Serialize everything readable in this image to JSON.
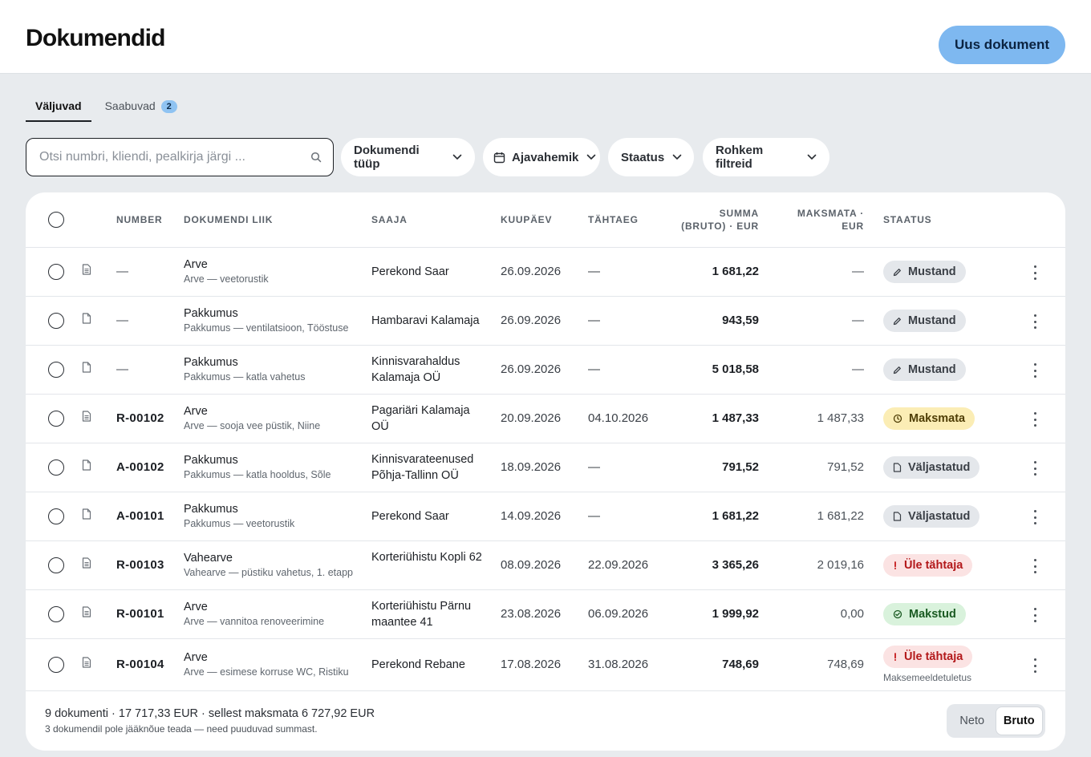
{
  "header": {
    "title": "Dokumendid",
    "new_button": "Uus dokument"
  },
  "tabs": [
    {
      "label": "Väljuvad",
      "active": true
    },
    {
      "label": "Saabuvad",
      "badge": "2",
      "active": false
    }
  ],
  "search": {
    "placeholder": "Otsi numbri, kliendi, pealkirja järgi ...",
    "value": ""
  },
  "filters": {
    "doc_type": "Dokumendi tüüp",
    "date_range": "Ajavahemik",
    "status": "Staatus",
    "more": "Rohkem filtreid"
  },
  "table": {
    "columns": {
      "number": "Number",
      "kind": "Dokumendi liik",
      "recipient": "Saaja",
      "date": "Kuupäev",
      "due": "Tähtaeg",
      "gross_1": "Summa",
      "gross_2": "(bruto) · EUR",
      "unpaid_1": "Maksmata ·",
      "unpaid_2": "EUR",
      "status": "Staatus"
    },
    "rows": [
      {
        "number": "—",
        "kind": "Arve",
        "subtitle": "Arve — veetorustik",
        "recipient": "Perekond Saar",
        "date": "26.09.2026",
        "due": "—",
        "amount": "1 681,22",
        "unpaid": "—",
        "status": "Mustand",
        "status_type": "draft",
        "icon": "invoice"
      },
      {
        "number": "—",
        "kind": "Pakkumus",
        "subtitle": "Pakkumus — ventilatsioon, Tööstuse",
        "recipient": "Hambaravi Kalamaja",
        "date": "26.09.2026",
        "due": "—",
        "amount": "943,59",
        "unpaid": "—",
        "status": "Mustand",
        "status_type": "draft",
        "icon": "offer"
      },
      {
        "number": "—",
        "kind": "Pakkumus",
        "subtitle": "Pakkumus — katla vahetus",
        "recipient": "Kinnisvarahaldus Kalamaja OÜ",
        "date": "26.09.2026",
        "due": "—",
        "amount": "5 018,58",
        "unpaid": "—",
        "status": "Mustand",
        "status_type": "draft",
        "icon": "offer"
      },
      {
        "number": "R-00102",
        "kind": "Arve",
        "subtitle": "Arve — sooja vee püstik, Niine",
        "recipient": "Pagariäri Kalamaja OÜ",
        "date": "20.09.2026",
        "due": "04.10.2026",
        "amount": "1 487,33",
        "unpaid": "1 487,33",
        "status": "Maksmata",
        "status_type": "unpaid",
        "icon": "invoice"
      },
      {
        "number": "A-00102",
        "kind": "Pakkumus",
        "subtitle": "Pakkumus — katla hooldus, Sõle",
        "recipient": "Kinnisvarateenused Põhja-Tallinn OÜ",
        "date": "18.09.2026",
        "due": "—",
        "amount": "791,52",
        "unpaid": "791,52",
        "status": "Väljastatud",
        "status_type": "issued",
        "icon": "offer"
      },
      {
        "number": "A-00101",
        "kind": "Pakkumus",
        "subtitle": "Pakkumus — veetorustik",
        "recipient": "Perekond Saar",
        "date": "14.09.2026",
        "due": "—",
        "amount": "1 681,22",
        "unpaid": "1 681,22",
        "status": "Väljastatud",
        "status_type": "issued",
        "icon": "offer"
      },
      {
        "number": "R-00103",
        "kind": "Vahearve",
        "subtitle": "Vahearve — püstiku vahetus, 1. etapp",
        "recipient": "Korteriühistu Kopli 62",
        "date": "08.09.2026",
        "due": "22.09.2026",
        "amount": "3 365,26",
        "unpaid": "2 019,16",
        "status": "Üle tähtaja",
        "status_type": "overdue",
        "icon": "invoice"
      },
      {
        "number": "R-00101",
        "kind": "Arve",
        "subtitle": "Arve — vannitoa renoveerimine",
        "recipient": "Korteriühistu Pärnu maantee 41",
        "date": "23.08.2026",
        "due": "06.09.2026",
        "amount": "1 999,92",
        "unpaid": "0,00",
        "status": "Makstud",
        "status_type": "paid",
        "icon": "invoice"
      },
      {
        "number": "R-00104",
        "kind": "Arve",
        "subtitle": "Arve — esimese korruse WC, Ristiku",
        "recipient": "Perekond Rebane",
        "date": "17.08.2026",
        "due": "31.08.2026",
        "amount": "748,69",
        "unpaid": "748,69",
        "status": "Üle tähtaja",
        "status_type": "overdue",
        "status_note": "Maksemeeldetuletus",
        "icon": "invoice"
      }
    ]
  },
  "footer": {
    "summary": "9 dokumenti · 17 717,33 EUR · sellest maksmata 6 727,92 EUR",
    "note": "3 dokumendil pole jääknõue teada — need puuduvad summast.",
    "toggle_neto": "Neto",
    "toggle_bruto": "Bruto",
    "toggle_selected": "Bruto"
  },
  "colors": {
    "accent": "#7eb8f0",
    "draft": "#e4e7eb",
    "unpaid": "#fbedb5",
    "overdue": "#fbe3e3",
    "paid": "#d9f2dc"
  }
}
